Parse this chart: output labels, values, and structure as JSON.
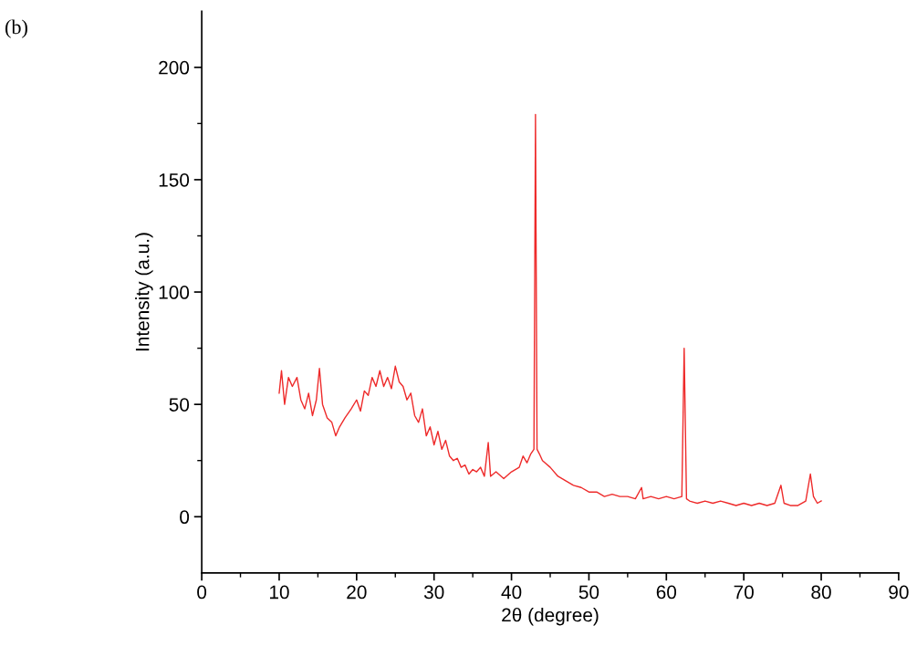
{
  "chart_data": {
    "type": "line",
    "xlabel": "2θ (degree)",
    "ylabel": "Intensity (a.u.)",
    "annotations": [
      "(b)"
    ],
    "xlim": [
      0,
      90
    ],
    "xticks": [
      0,
      10,
      20,
      30,
      40,
      50,
      60,
      70,
      80,
      90
    ],
    "ylim": [
      -25,
      225
    ],
    "yticks": [
      0,
      50,
      100,
      150,
      200
    ],
    "grid": false,
    "legend": false,
    "series": [
      {
        "color": "#ee2a2a",
        "x": [
          10,
          10.3,
          10.7,
          11.2,
          11.7,
          12.3,
          12.8,
          13.3,
          13.8,
          14.3,
          14.8,
          15.2,
          15.6,
          16.2,
          16.8,
          17.3,
          17.8,
          18.5,
          19.3,
          20,
          20.5,
          21,
          21.5,
          22,
          22.5,
          23,
          23.5,
          24,
          24.5,
          25,
          25.5,
          26,
          26.5,
          27,
          27.5,
          28,
          28.5,
          29,
          29.5,
          30,
          30.5,
          31,
          31.5,
          32,
          32.5,
          33,
          33.5,
          34,
          34.5,
          35,
          35.5,
          36,
          36.5,
          37,
          37.3,
          38,
          39,
          40,
          41,
          41.5,
          42,
          42.5,
          42.9,
          43.1,
          43.3,
          43.6,
          44,
          45,
          46,
          47,
          48,
          49,
          50,
          51,
          52,
          53,
          54,
          55,
          56,
          56.8,
          57,
          58,
          59,
          60,
          61,
          62,
          62.3,
          62.6,
          63,
          64,
          65,
          66,
          67,
          68,
          69,
          70,
          71,
          72,
          73,
          74,
          74.8,
          75.2,
          76,
          77,
          78,
          78.6,
          79,
          79.5,
          80
        ],
        "values": [
          55,
          65,
          50,
          62,
          58,
          62,
          52,
          48,
          55,
          45,
          52,
          66,
          50,
          44,
          42,
          36,
          40,
          44,
          48,
          52,
          47,
          56,
          54,
          62,
          58,
          65,
          58,
          62,
          57,
          67,
          60,
          58,
          52,
          55,
          45,
          42,
          48,
          36,
          40,
          32,
          38,
          30,
          34,
          27,
          25,
          26,
          22,
          23,
          19,
          21,
          20,
          22,
          18,
          33,
          18,
          20,
          17,
          20,
          22,
          27,
          24,
          28,
          30,
          179,
          30,
          28,
          25,
          22,
          18,
          16,
          14,
          13,
          11,
          11,
          9,
          10,
          9,
          9,
          8,
          13,
          8,
          9,
          8,
          9,
          8,
          9,
          75,
          8,
          7,
          6,
          7,
          6,
          7,
          6,
          5,
          6,
          5,
          6,
          5,
          6,
          14,
          6,
          5,
          5,
          7,
          19,
          9,
          6,
          7
        ]
      }
    ]
  }
}
